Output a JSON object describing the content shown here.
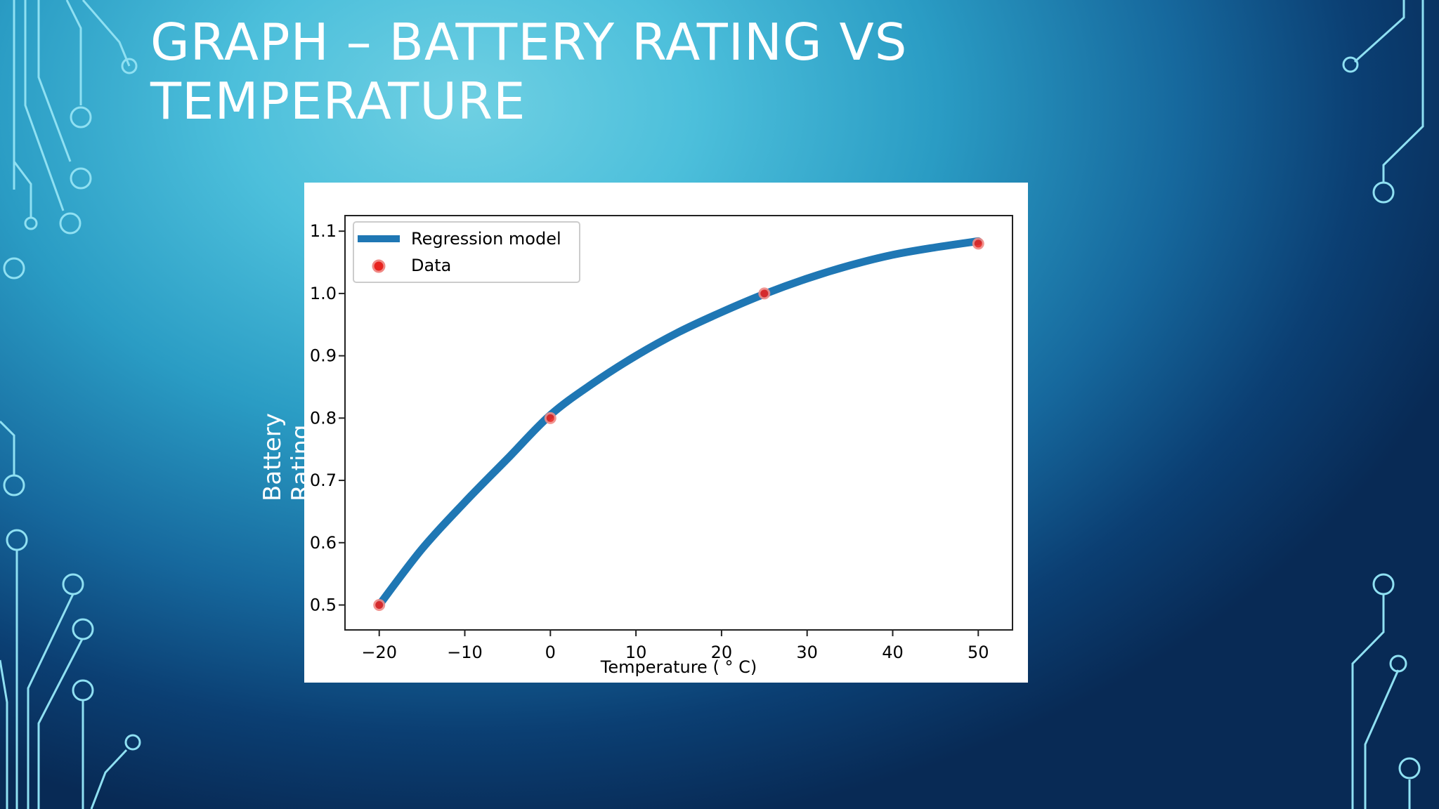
{
  "slide": {
    "title": "GRAPH – BATTERY RATING VS TEMPERATURE",
    "ylabel_overlay": "Battery Rating"
  },
  "colors": {
    "line": "#1f77b4",
    "points": "#e8231f",
    "text": "#ffffff"
  },
  "chart_data": {
    "type": "line",
    "title": "",
    "xlabel": "Temperature ( ° C)",
    "ylabel": "",
    "xlim": [
      -24,
      54
    ],
    "ylim": [
      0.46,
      1.125
    ],
    "xticks": [
      -20,
      -10,
      0,
      10,
      20,
      30,
      40,
      50
    ],
    "xtick_labels": [
      "−20",
      "−10",
      "0",
      "10",
      "20",
      "30",
      "40",
      "50"
    ],
    "yticks": [
      0.5,
      0.6,
      0.7,
      0.8,
      0.9,
      1.0,
      1.1
    ],
    "ytick_labels": [
      "0.5",
      "0.6",
      "0.7",
      "0.8",
      "0.9",
      "1.0",
      "1.1"
    ],
    "legend_position": "top-left",
    "grid": false,
    "series": [
      {
        "name": "Regression model",
        "kind": "line",
        "x": [
          -20,
          -15,
          -10,
          -5,
          0,
          5,
          10,
          15,
          20,
          25,
          30,
          35,
          40,
          45,
          50
        ],
        "y": [
          0.5,
          0.59,
          0.665,
          0.735,
          0.805,
          0.856,
          0.9,
          0.938,
          0.97,
          0.999,
          1.024,
          1.045,
          1.062,
          1.074,
          1.084
        ]
      },
      {
        "name": "Data",
        "kind": "scatter",
        "x": [
          -20,
          0,
          25,
          50
        ],
        "y": [
          0.5,
          0.8,
          1.0,
          1.08
        ]
      }
    ]
  }
}
